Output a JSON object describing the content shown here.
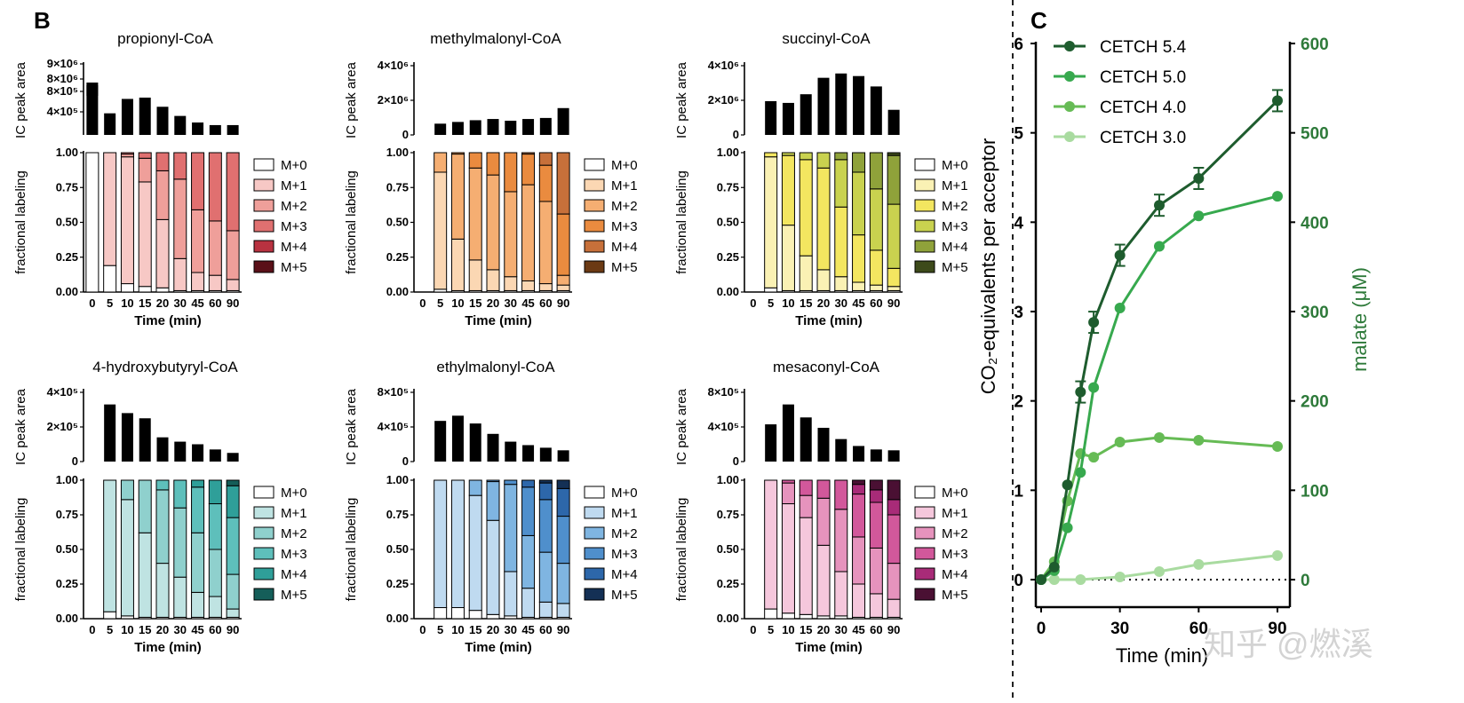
{
  "panel_labels": {
    "b": "B",
    "c": "C"
  },
  "chart_data": [
    {
      "type": "bar",
      "id": "propionyl",
      "title": "propionyl-CoA",
      "ylabel": "IC peak area",
      "yticks": [
        "9×10⁶",
        "8×10⁶",
        "8×10⁵",
        "4×10⁵"
      ],
      "categories": [
        "0",
        "5",
        "10",
        "15",
        "20",
        "30",
        "45",
        "60",
        "90"
      ],
      "values": [
        8000000,
        330000,
        550000,
        570000,
        430000,
        290000,
        190000,
        150000,
        150000
      ],
      "note": "axis broken between 8×10⁵ and 8×10⁶"
    },
    {
      "type": "bar",
      "id": "methylmalonyl",
      "title": "methylmalonyl-CoA",
      "ylabel": "IC peak area",
      "yticks": [
        "4×10⁶",
        "2×10⁶",
        "0"
      ],
      "ylim": [
        0,
        4000000
      ],
      "categories": [
        "0",
        "5",
        "10",
        "15",
        "20",
        "30",
        "45",
        "60",
        "90"
      ],
      "values": [
        0,
        650000,
        750000,
        850000,
        920000,
        820000,
        920000,
        980000,
        1550000
      ]
    },
    {
      "type": "bar",
      "id": "succinyl",
      "title": "succinyl-CoA",
      "ylabel": "IC peak area",
      "yticks": [
        "4×10⁶",
        "2×10⁶",
        "0"
      ],
      "ylim": [
        0,
        4000000
      ],
      "categories": [
        "0",
        "5",
        "10",
        "15",
        "20",
        "30",
        "45",
        "60",
        "90"
      ],
      "values": [
        0,
        1950000,
        1850000,
        2350000,
        3300000,
        3550000,
        3400000,
        2800000,
        1450000
      ]
    },
    {
      "type": "bar",
      "id": "hydroxybutyryl",
      "title": "4-hydroxybutyryl-CoA",
      "ylabel": "IC peak area",
      "yticks": [
        "4×10⁵",
        "2×10⁵",
        "0"
      ],
      "ylim": [
        0,
        400000
      ],
      "categories": [
        "0",
        "5",
        "10",
        "15",
        "20",
        "30",
        "45",
        "60",
        "90"
      ],
      "values": [
        0,
        330000,
        280000,
        250000,
        140000,
        115000,
        100000,
        70000,
        50000
      ]
    },
    {
      "type": "bar",
      "id": "ethylmalonyl",
      "title": "ethylmalonyl-CoA",
      "ylabel": "IC peak area",
      "yticks": [
        "8×10⁵",
        "4×10⁵",
        "0"
      ],
      "ylim": [
        0,
        800000
      ],
      "categories": [
        "0",
        "5",
        "10",
        "15",
        "20",
        "30",
        "45",
        "60",
        "90"
      ],
      "values": [
        0,
        470000,
        530000,
        440000,
        320000,
        230000,
        190000,
        160000,
        130000
      ]
    },
    {
      "type": "bar",
      "id": "mesaconyl",
      "title": "mesaconyl-CoA",
      "ylabel": "IC peak area",
      "yticks": [
        "8×10⁵",
        "4×10⁵",
        "0"
      ],
      "ylim": [
        0,
        800000
      ],
      "categories": [
        "0",
        "5",
        "10",
        "15",
        "20",
        "30",
        "45",
        "60",
        "90"
      ],
      "values": [
        0,
        430000,
        660000,
        510000,
        390000,
        260000,
        180000,
        140000,
        130000
      ]
    },
    {
      "type": "stacked_bar",
      "id": "propionyl-label",
      "ylabel": "fractional labeling",
      "xlabel": "Time (min)",
      "yticks": [
        "1.00",
        "0.75",
        "0.50",
        "0.25",
        "0.00"
      ],
      "ylim": [
        0,
        1
      ],
      "categories": [
        "0",
        "5",
        "10",
        "15",
        "20",
        "30",
        "45",
        "60",
        "90"
      ],
      "legend": [
        "M+0",
        "M+1",
        "M+2",
        "M+3",
        "M+4",
        "M+5"
      ],
      "colors": [
        "#ffffff",
        "#f7c8c5",
        "#ef9f9a",
        "#e07070",
        "#b83240",
        "#5a1018"
      ],
      "cumulative": [
        [
          1.0,
          1.0,
          1.0,
          1.0,
          1.0,
          1.0
        ],
        [
          0.19,
          1.0,
          1.0,
          1.0,
          1.0,
          1.0
        ],
        [
          0.06,
          0.97,
          0.99,
          1.0,
          1.0,
          1.0
        ],
        [
          0.04,
          0.79,
          0.96,
          1.0,
          1.0,
          1.0
        ],
        [
          0.03,
          0.52,
          0.87,
          1.0,
          1.0,
          1.0
        ],
        [
          0.01,
          0.24,
          0.81,
          1.0,
          1.0,
          1.0
        ],
        [
          0.01,
          0.14,
          0.59,
          1.0,
          1.0,
          1.0
        ],
        [
          0.01,
          0.12,
          0.51,
          1.0,
          1.0,
          1.0
        ],
        [
          0.01,
          0.09,
          0.44,
          1.0,
          1.0,
          1.0
        ]
      ]
    },
    {
      "type": "stacked_bar",
      "id": "methylmalonyl-label",
      "ylabel": "fractional labeling",
      "xlabel": "Time (min)",
      "yticks": [
        "1.00",
        "0.75",
        "0.50",
        "0.25",
        "0.00"
      ],
      "ylim": [
        0,
        1
      ],
      "categories": [
        "0",
        "5",
        "10",
        "15",
        "20",
        "30",
        "45",
        "60",
        "90"
      ],
      "legend": [
        "M+0",
        "M+1",
        "M+2",
        "M+3",
        "M+4",
        "M+5"
      ],
      "colors": [
        "#ffffff",
        "#fbd7b3",
        "#f5ae72",
        "#ea8b3f",
        "#c7703a",
        "#6b3a14"
      ],
      "cumulative": [
        null,
        [
          0.02,
          0.86,
          1.0,
          1.0,
          1.0,
          1.0
        ],
        [
          0.01,
          0.38,
          0.99,
          1.0,
          1.0,
          1.0
        ],
        [
          0.01,
          0.23,
          0.89,
          1.0,
          1.0,
          1.0
        ],
        [
          0.01,
          0.16,
          0.84,
          1.0,
          1.0,
          1.0
        ],
        [
          0.01,
          0.11,
          0.72,
          1.0,
          1.0,
          1.0
        ],
        [
          0.01,
          0.08,
          0.77,
          0.99,
          1.0,
          1.0
        ],
        [
          0.01,
          0.06,
          0.65,
          0.91,
          1.0,
          1.0
        ],
        [
          0.01,
          0.05,
          0.12,
          0.56,
          1.0,
          1.0
        ]
      ]
    },
    {
      "type": "stacked_bar",
      "id": "succinyl-label",
      "ylabel": "fractional labeling",
      "xlabel": "Time (min)",
      "yticks": [
        "1.00",
        "0.75",
        "0.50",
        "0.25",
        "0.00"
      ],
      "ylim": [
        0,
        1
      ],
      "categories": [
        "0",
        "5",
        "10",
        "15",
        "20",
        "30",
        "45",
        "60",
        "90"
      ],
      "legend": [
        "M+0",
        "M+1",
        "M+2",
        "M+3",
        "M+4",
        "M+5"
      ],
      "colors": [
        "#ffffff",
        "#faf1b4",
        "#f3e660",
        "#c9d24f",
        "#8fa23a",
        "#3d4a1a"
      ],
      "cumulative": [
        null,
        [
          0.03,
          0.97,
          1.0,
          1.0,
          1.0,
          1.0
        ],
        [
          0.01,
          0.48,
          0.98,
          1.0,
          1.0,
          1.0
        ],
        [
          0.01,
          0.26,
          0.95,
          1.0,
          1.0,
          1.0
        ],
        [
          0.01,
          0.16,
          0.89,
          1.0,
          1.0,
          1.0
        ],
        [
          0.01,
          0.11,
          0.61,
          0.95,
          1.0,
          1.0
        ],
        [
          0.01,
          0.07,
          0.41,
          0.86,
          1.0,
          1.0
        ],
        [
          0.01,
          0.05,
          0.3,
          0.74,
          1.0,
          1.0
        ],
        [
          0.01,
          0.04,
          0.17,
          0.63,
          0.98,
          1.0
        ]
      ]
    },
    {
      "type": "stacked_bar",
      "id": "hydroxybutyryl-label",
      "ylabel": "fractional labeling",
      "xlabel": "Time (min)",
      "yticks": [
        "1.00",
        "0.75",
        "0.50",
        "0.25",
        "0.00"
      ],
      "ylim": [
        0,
        1
      ],
      "categories": [
        "0",
        "5",
        "10",
        "15",
        "20",
        "30",
        "45",
        "60",
        "90"
      ],
      "legend": [
        "M+0",
        "M+1",
        "M+2",
        "M+3",
        "M+4",
        "M+5"
      ],
      "colors": [
        "#ffffff",
        "#bfe3e2",
        "#8fd0cd",
        "#5ebfbb",
        "#2f9f99",
        "#155e59"
      ],
      "cumulative": [
        null,
        [
          0.05,
          1.0,
          1.0,
          1.0,
          1.0,
          1.0
        ],
        [
          0.02,
          0.86,
          1.0,
          1.0,
          1.0,
          1.0
        ],
        [
          0.01,
          0.62,
          1.0,
          1.0,
          1.0,
          1.0
        ],
        [
          0.01,
          0.4,
          0.93,
          1.0,
          1.0,
          1.0
        ],
        [
          0.01,
          0.3,
          0.8,
          1.0,
          1.0,
          1.0
        ],
        [
          0.01,
          0.19,
          0.62,
          0.95,
          1.0,
          1.0
        ],
        [
          0.01,
          0.16,
          0.5,
          0.83,
          1.0,
          1.0
        ],
        [
          0.01,
          0.07,
          0.32,
          0.73,
          0.96,
          1.0
        ]
      ]
    },
    {
      "type": "stacked_bar",
      "id": "ethylmalonyl-label",
      "ylabel": "fractional labeling",
      "xlabel": "Time (min)",
      "yticks": [
        "1.00",
        "0.75",
        "0.50",
        "0.25",
        "0.00"
      ],
      "ylim": [
        0,
        1
      ],
      "categories": [
        "0",
        "5",
        "10",
        "15",
        "20",
        "30",
        "45",
        "60",
        "90"
      ],
      "legend": [
        "M+0",
        "M+1",
        "M+2",
        "M+3",
        "M+4",
        "M+5"
      ],
      "colors": [
        "#ffffff",
        "#bfdaf0",
        "#7fb5e1",
        "#4f8fcc",
        "#2d67aa",
        "#143055"
      ],
      "cumulative": [
        null,
        [
          0.08,
          1.0,
          1.0,
          1.0,
          1.0,
          1.0
        ],
        [
          0.08,
          1.0,
          1.0,
          1.0,
          1.0,
          1.0
        ],
        [
          0.06,
          0.89,
          1.0,
          1.0,
          1.0,
          1.0
        ],
        [
          0.03,
          0.71,
          0.99,
          1.0,
          1.0,
          1.0
        ],
        [
          0.02,
          0.34,
          0.97,
          1.0,
          1.0,
          1.0
        ],
        [
          0.01,
          0.22,
          0.6,
          0.95,
          1.0,
          1.0
        ],
        [
          0.01,
          0.12,
          0.48,
          0.86,
          0.98,
          1.0
        ],
        [
          0.01,
          0.11,
          0.4,
          0.74,
          0.94,
          1.0
        ]
      ]
    },
    {
      "type": "stacked_bar",
      "id": "mesaconyl-label",
      "ylabel": "fractional labeling",
      "xlabel": "Time (min)",
      "yticks": [
        "1.00",
        "0.75",
        "0.50",
        "0.25",
        "0.00"
      ],
      "ylim": [
        0,
        1
      ],
      "categories": [
        "0",
        "5",
        "10",
        "15",
        "20",
        "30",
        "45",
        "60",
        "90"
      ],
      "legend": [
        "M+0",
        "M+1",
        "M+2",
        "M+3",
        "M+4",
        "M+5"
      ],
      "colors": [
        "#ffffff",
        "#f5c7dc",
        "#e693bd",
        "#d2589b",
        "#a82b78",
        "#4a1033"
      ],
      "cumulative": [
        null,
        [
          0.07,
          1.0,
          1.0,
          1.0,
          1.0,
          1.0
        ],
        [
          0.04,
          0.83,
          0.98,
          1.0,
          1.0,
          1.0
        ],
        [
          0.03,
          0.73,
          0.89,
          1.0,
          1.0,
          1.0
        ],
        [
          0.02,
          0.53,
          0.87,
          1.0,
          1.0,
          1.0
        ],
        [
          0.02,
          0.34,
          0.79,
          1.0,
          1.0,
          1.0
        ],
        [
          0.01,
          0.25,
          0.59,
          0.9,
          0.97,
          1.0
        ],
        [
          0.01,
          0.18,
          0.51,
          0.84,
          0.93,
          1.0
        ],
        [
          0.01,
          0.14,
          0.4,
          0.75,
          0.86,
          1.0
        ]
      ]
    },
    {
      "type": "line",
      "id": "cetch",
      "xlabel": "Time (min)",
      "ylabel": "CO₂-equivalents per acceptor",
      "y2label": "malate (μM)",
      "xticks": [
        "0",
        "30",
        "60",
        "90"
      ],
      "yticks": [
        "0",
        "1",
        "2",
        "3",
        "4",
        "5",
        "6"
      ],
      "y2ticks": [
        "0",
        "100",
        "200",
        "300",
        "400",
        "500",
        "600"
      ],
      "xlim": [
        0,
        90
      ],
      "ylim": [
        0,
        6
      ],
      "y2lim": [
        0,
        600
      ],
      "series": [
        {
          "name": "CETCH 5.4",
          "color": "#1e5c2e",
          "points": [
            [
              0,
              0
            ],
            [
              5,
              0.14
            ],
            [
              10,
              1.06
            ],
            [
              15,
              2.1
            ],
            [
              20,
              2.88
            ],
            [
              30,
              3.63
            ],
            [
              45,
              4.19
            ],
            [
              60,
              4.49
            ],
            [
              90,
              5.36
            ]
          ]
        },
        {
          "name": "CETCH 5.0",
          "color": "#37a94e",
          "points": [
            [
              0,
              0
            ],
            [
              5,
              0.1
            ],
            [
              10,
              0.58
            ],
            [
              15,
              1.2
            ],
            [
              20,
              2.15
            ],
            [
              30,
              3.04
            ],
            [
              45,
              3.73
            ],
            [
              60,
              4.07
            ],
            [
              90,
              4.29
            ]
          ]
        },
        {
          "name": "CETCH 4.0",
          "color": "#66bb55",
          "points": [
            [
              0,
              0
            ],
            [
              5,
              0.2
            ],
            [
              10,
              0.88
            ],
            [
              15,
              1.41
            ],
            [
              20,
              1.37
            ],
            [
              30,
              1.54
            ],
            [
              45,
              1.59
            ],
            [
              60,
              1.56
            ],
            [
              90,
              1.49
            ]
          ]
        },
        {
          "name": "CETCH 3.0",
          "color": "#a9dba0",
          "points": [
            [
              0,
              0
            ],
            [
              5,
              0
            ],
            [
              15,
              0
            ],
            [
              30,
              0.03
            ],
            [
              45,
              0.09
            ],
            [
              60,
              0.17
            ],
            [
              90,
              0.27
            ]
          ]
        }
      ]
    }
  ],
  "watermark": "知乎 @燃溪"
}
